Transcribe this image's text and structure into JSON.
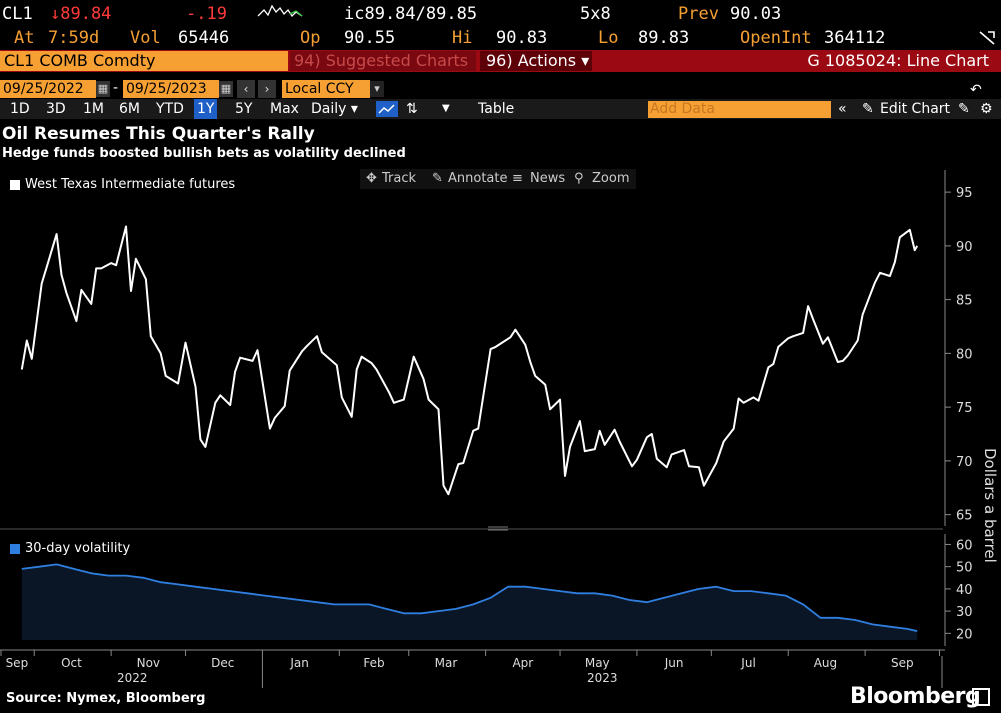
{
  "quote": {
    "ticker": "CL1",
    "last": "↓89.84",
    "change": "-.19",
    "bid_ask": "ic89.84/89.85",
    "size": "5x8",
    "prev_label": "Prev",
    "prev": "90.03",
    "time_label": "At",
    "time": "7:59d",
    "vol_label": "Vol",
    "vol": "65446",
    "open_label": "Op",
    "open": "90.55",
    "high_label": "Hi",
    "high": "90.83",
    "low_label": "Lo",
    "low": "89.83",
    "oi_label": "OpenInt",
    "oi": "364112"
  },
  "titlebar": {
    "security": "CL1 COMB Comdty",
    "suggested": "94) Suggested Charts",
    "actions": "96) Actions ▾",
    "graph": "G 1085024: Line Chart"
  },
  "dates": {
    "start": "09/25/2022",
    "end": "09/25/2023",
    "currency": "Local CCY"
  },
  "toolbar": {
    "periods": [
      "1D",
      "3D",
      "1M",
      "6M",
      "YTD",
      "1Y",
      "5Y",
      "Max"
    ],
    "active_period": "1Y",
    "frequency": "Daily ▾",
    "table": "Table",
    "add_data": "Add Data",
    "edit_chart": "Edit Chart"
  },
  "chart_tools": {
    "track": "Track",
    "annotate": "Annotate",
    "news": "News",
    "zoom": "Zoom"
  },
  "source": "Source: Nymex, Bloomberg",
  "logo": "Bloomberg",
  "colors": {
    "price": "#ffffff",
    "vol": "#2f7fe0",
    "accent": "#f6a033",
    "titlebar": "#9b0a12"
  },
  "chart_data": [
    {
      "type": "line",
      "title": "Oil Resumes This Quarter's Rally",
      "subtitle": "Hedge funds boosted bullish bets as volatility declined",
      "series": [
        {
          "name": "West Texas Intermediate futures",
          "x": [
            "2022-09-26",
            "2022-09-28",
            "2022-09-30",
            "2022-10-04",
            "2022-10-06",
            "2022-10-10",
            "2022-10-12",
            "2022-10-14",
            "2022-10-18",
            "2022-10-20",
            "2022-10-24",
            "2022-10-26",
            "2022-10-28",
            "2022-11-01",
            "2022-11-03",
            "2022-11-07",
            "2022-11-09",
            "2022-11-11",
            "2022-11-15",
            "2022-11-17",
            "2022-11-21",
            "2022-11-23",
            "2022-11-28",
            "2022-12-01",
            "2022-12-05",
            "2022-12-07",
            "2022-12-09",
            "2022-12-13",
            "2022-12-15",
            "2022-12-19",
            "2022-12-21",
            "2022-12-23",
            "2022-12-28",
            "2022-12-30",
            "2023-01-04",
            "2023-01-06",
            "2023-01-10",
            "2023-01-12",
            "2023-01-17",
            "2023-01-19",
            "2023-01-23",
            "2023-01-25",
            "2023-01-27",
            "2023-01-31",
            "2023-02-02",
            "2023-02-06",
            "2023-02-08",
            "2023-02-10",
            "2023-02-14",
            "2023-02-16",
            "2023-02-21",
            "2023-02-23",
            "2023-02-27",
            "2023-03-01",
            "2023-03-03",
            "2023-03-07",
            "2023-03-09",
            "2023-03-13",
            "2023-03-15",
            "2023-03-17",
            "2023-03-21",
            "2023-03-23",
            "2023-03-27",
            "2023-03-29",
            "2023-04-03",
            "2023-04-05",
            "2023-04-11",
            "2023-04-13",
            "2023-04-17",
            "2023-04-19",
            "2023-04-21",
            "2023-04-25",
            "2023-04-27",
            "2023-05-01",
            "2023-05-03",
            "2023-05-05",
            "2023-05-09",
            "2023-05-11",
            "2023-05-15",
            "2023-05-17",
            "2023-05-19",
            "2023-05-23",
            "2023-05-25",
            "2023-05-30",
            "2023-06-01",
            "2023-06-05",
            "2023-06-07",
            "2023-06-09",
            "2023-06-13",
            "2023-06-15",
            "2023-06-20",
            "2023-06-22",
            "2023-06-26",
            "2023-06-28",
            "2023-07-03",
            "2023-07-06",
            "2023-07-10",
            "2023-07-12",
            "2023-07-14",
            "2023-07-18",
            "2023-07-20",
            "2023-07-24",
            "2023-07-26",
            "2023-07-28",
            "2023-08-01",
            "2023-08-03",
            "2023-08-07",
            "2023-08-09",
            "2023-08-11",
            "2023-08-15",
            "2023-08-17",
            "2023-08-21",
            "2023-08-23",
            "2023-08-25",
            "2023-08-29",
            "2023-08-31",
            "2023-09-05",
            "2023-09-07",
            "2023-09-11",
            "2023-09-13",
            "2023-09-15",
            "2023-09-19",
            "2023-09-21",
            "2023-09-22"
          ],
          "y": [
            78.5,
            81.2,
            79.5,
            86.5,
            88.0,
            91.1,
            87.3,
            85.6,
            83.0,
            85.9,
            84.6,
            87.9,
            87.9,
            88.4,
            88.2,
            91.8,
            85.8,
            88.8,
            86.9,
            81.6,
            80.0,
            77.9,
            77.2,
            81.0,
            76.9,
            72.0,
            71.3,
            75.4,
            76.1,
            75.2,
            78.3,
            79.6,
            79.3,
            80.3,
            73.0,
            74.0,
            75.1,
            78.4,
            80.2,
            80.7,
            81.6,
            80.1,
            79.7,
            78.9,
            75.9,
            74.1,
            78.5,
            79.7,
            79.1,
            78.5,
            76.4,
            75.4,
            75.7,
            77.7,
            79.7,
            77.6,
            75.7,
            74.8,
            67.7,
            66.9,
            69.7,
            69.8,
            72.8,
            73.0,
            80.4,
            80.6,
            81.5,
            82.2,
            80.8,
            79.2,
            77.9,
            77.1,
            74.8,
            75.7,
            68.6,
            71.3,
            73.7,
            70.9,
            71.1,
            72.8,
            71.5,
            72.9,
            71.8,
            69.5,
            70.1,
            72.2,
            72.5,
            70.2,
            69.4,
            70.6,
            71.0,
            69.5,
            69.4,
            67.7,
            69.8,
            71.8,
            73.0,
            75.8,
            75.4,
            75.9,
            75.6,
            78.7,
            79.0,
            80.6,
            81.4,
            81.6,
            81.9,
            84.4,
            83.2,
            80.9,
            81.5,
            79.2,
            79.3,
            79.8,
            81.2,
            83.6,
            86.6,
            87.5,
            87.2,
            88.5,
            90.8,
            91.5,
            89.6,
            90.0
          ],
          "color": "#ffffff"
        }
      ],
      "ylabel": "Dollars a barrel",
      "yticks": [
        65,
        70,
        75,
        80,
        85,
        90,
        95
      ],
      "ylim": [
        64.5,
        96.5
      ],
      "legend": "top-left",
      "grid": false
    },
    {
      "type": "area",
      "series": [
        {
          "name": "30-day volatility",
          "x": [
            "2022-09-26",
            "2022-10-03",
            "2022-10-10",
            "2022-10-17",
            "2022-10-24",
            "2022-10-31",
            "2022-11-07",
            "2022-11-14",
            "2022-11-21",
            "2022-11-28",
            "2022-12-05",
            "2022-12-12",
            "2022-12-19",
            "2022-12-26",
            "2023-01-02",
            "2023-01-09",
            "2023-01-16",
            "2023-01-23",
            "2023-01-30",
            "2023-02-06",
            "2023-02-13",
            "2023-02-20",
            "2023-02-27",
            "2023-03-06",
            "2023-03-13",
            "2023-03-20",
            "2023-03-27",
            "2023-04-03",
            "2023-04-10",
            "2023-04-17",
            "2023-04-24",
            "2023-05-01",
            "2023-05-08",
            "2023-05-15",
            "2023-05-22",
            "2023-05-29",
            "2023-06-05",
            "2023-06-12",
            "2023-06-19",
            "2023-06-26",
            "2023-07-03",
            "2023-07-10",
            "2023-07-17",
            "2023-07-24",
            "2023-07-31",
            "2023-08-07",
            "2023-08-14",
            "2023-08-21",
            "2023-08-28",
            "2023-09-04",
            "2023-09-11",
            "2023-09-18",
            "2023-09-22"
          ],
          "y": [
            49,
            50,
            51,
            49,
            47,
            46,
            46,
            45,
            43,
            42,
            41,
            40,
            39,
            38,
            37,
            36,
            35,
            34,
            33,
            33,
            33,
            31,
            29,
            29,
            30,
            31,
            33,
            36,
            41,
            41,
            40,
            39,
            38,
            38,
            37,
            35,
            34,
            36,
            38,
            40,
            41,
            39,
            39,
            38,
            37,
            33,
            27,
            27,
            26,
            24,
            23,
            22,
            21
          ],
          "color": "#2f7fe0"
        }
      ],
      "yticks": [
        20,
        30,
        40,
        50,
        60
      ],
      "ylim": [
        17,
        62
      ],
      "legend": "top-left"
    }
  ],
  "xaxis": {
    "months": [
      "Sep",
      "Oct",
      "Nov",
      "Dec",
      "Jan",
      "Feb",
      "Mar",
      "Apr",
      "May",
      "Jun",
      "Jul",
      "Aug",
      "Sep"
    ],
    "years": [
      "2022",
      "2023"
    ]
  }
}
